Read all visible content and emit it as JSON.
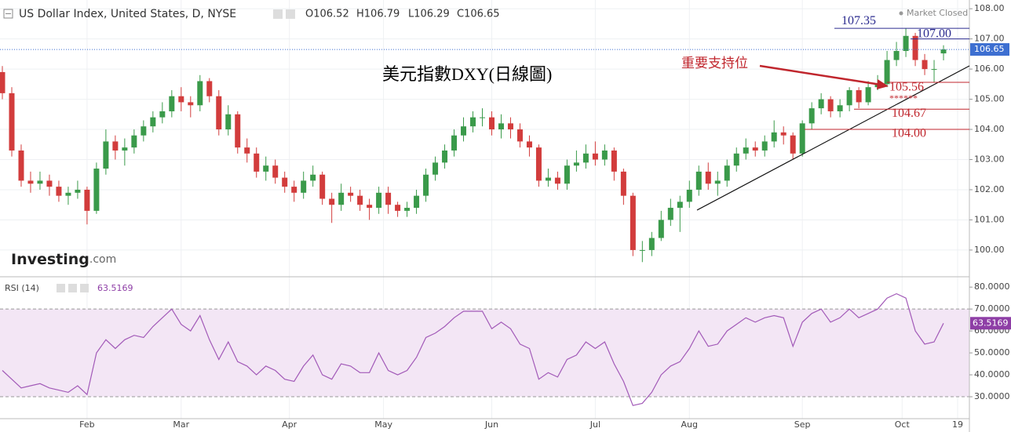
{
  "chart_data": [
    {
      "type": "candlestick",
      "title": "US Dollar Index, United States, D, NYSE",
      "ohlc_labels": [
        "O106.52",
        "H106.79",
        "L106.29",
        "C106.65"
      ],
      "status": "Market Closed",
      "annotation_title": "美元指數DXY(日線圖)",
      "support_label": "重要支持位",
      "stars": "******",
      "logo": [
        "Investing",
        ".com"
      ],
      "up_color": "#3a9a4a",
      "down_color": "#d23c3c",
      "xlim": [
        -0.25,
        102.75
      ],
      "xticks": [
        {
          "value": 9,
          "label": "Feb"
        },
        {
          "value": 19,
          "label": "Mar"
        },
        {
          "value": 30.5,
          "label": "Apr"
        },
        {
          "value": 40.5,
          "label": "May"
        },
        {
          "value": 52,
          "label": "Jun"
        },
        {
          "value": 63,
          "label": "Jul"
        },
        {
          "value": 73,
          "label": "Aug"
        },
        {
          "value": 85,
          "label": "Sep"
        },
        {
          "value": 95.6,
          "label": "Oct"
        },
        {
          "value": 101.5,
          "label": "19"
        }
      ],
      "ylim": [
        99.14,
        108.29
      ],
      "yticks": [
        {
          "value": 100,
          "label": "100.00"
        },
        {
          "value": 101,
          "label": "101.00"
        },
        {
          "value": 102,
          "label": "102.00"
        },
        {
          "value": 103,
          "label": "103.00"
        },
        {
          "value": 104,
          "label": "104.00"
        },
        {
          "value": 105,
          "label": "105.00"
        },
        {
          "value": 106,
          "label": "106.00"
        },
        {
          "value": 107,
          "label": "107.00"
        },
        {
          "value": 108,
          "label": "108.00"
        }
      ],
      "grid": true,
      "levels": [
        {
          "value": 107.35,
          "label": "107.35",
          "color": "#2b2b8f"
        },
        {
          "value": 107,
          "label": "107.00",
          "color": "#2b2b8f"
        },
        {
          "value": 105.56,
          "label": "105.56",
          "color": "#c0262d"
        },
        {
          "value": 104.67,
          "label": "104.67",
          "color": "#c0262d"
        },
        {
          "value": 104,
          "label": "104.00",
          "color": "#c0262d"
        }
      ],
      "open": [
        105.9,
        105.2,
        103.3,
        102.3,
        102.2,
        102.3,
        102.1,
        101.8,
        101.9,
        102.0,
        101.3,
        102.7,
        103.6,
        103.3,
        103.4,
        103.8,
        104.1,
        104.4,
        104.6,
        105.1,
        104.9,
        104.8,
        105.6,
        105.1,
        104.0,
        104.5,
        103.4,
        103.2,
        102.6,
        102.8,
        102.4,
        102.1,
        101.9,
        102.3,
        102.5,
        101.7,
        101.5,
        101.9,
        101.8,
        101.5,
        101.4,
        101.9,
        101.5,
        101.3,
        101.4,
        101.8,
        102.5,
        102.9,
        103.3,
        103.8,
        104.1,
        104.4,
        104.4,
        104.0,
        104.2,
        104.0,
        103.6,
        103.4,
        102.3,
        102.4,
        102.2,
        102.8,
        102.9,
        103.2,
        103.0,
        103.3,
        102.6,
        101.8,
        100.0,
        100.0,
        100.4,
        101.0,
        101.4,
        101.6,
        102.0,
        102.6,
        102.2,
        102.3,
        102.8,
        103.2,
        103.4,
        103.3,
        103.6,
        103.9,
        103.8,
        103.2,
        104.2,
        104.7,
        105.0,
        104.6,
        104.8,
        105.3,
        104.9,
        105.4,
        105.5,
        106.3,
        106.6,
        107.1,
        106.3,
        106.0,
        106.52
      ],
      "high": [
        106.1,
        105.4,
        103.5,
        102.6,
        102.6,
        102.5,
        102.3,
        102.1,
        102.3,
        102.1,
        102.9,
        104.0,
        103.8,
        103.7,
        104.0,
        104.3,
        104.6,
        104.9,
        105.3,
        105.4,
        105.1,
        105.8,
        105.7,
        105.3,
        104.8,
        104.6,
        103.7,
        103.4,
        103.1,
        103.0,
        102.6,
        102.3,
        102.6,
        102.8,
        102.6,
        101.9,
        102.2,
        102.1,
        102.0,
        101.7,
        102.1,
        102.1,
        101.6,
        101.6,
        102.0,
        102.7,
        103.1,
        103.5,
        104.0,
        104.4,
        104.6,
        104.7,
        104.6,
        104.5,
        104.4,
        104.2,
        103.8,
        103.5,
        102.7,
        102.6,
        103.0,
        103.3,
        103.5,
        103.6,
        103.5,
        103.4,
        102.7,
        101.9,
        100.3,
        100.6,
        101.3,
        101.7,
        101.8,
        102.3,
        102.8,
        102.9,
        102.6,
        103.0,
        103.4,
        103.7,
        103.6,
        103.8,
        104.3,
        104.1,
        103.9,
        104.3,
        104.9,
        105.2,
        105.1,
        105.0,
        105.4,
        105.4,
        105.6,
        105.8,
        106.6,
        106.9,
        107.35,
        107.2,
        106.5,
        106.3,
        106.79
      ],
      "low": [
        105.0,
        103.1,
        102.1,
        101.9,
        102.0,
        101.8,
        101.6,
        101.5,
        101.7,
        100.85,
        101.2,
        102.5,
        103.0,
        102.8,
        103.2,
        103.6,
        103.9,
        104.2,
        104.4,
        104.6,
        104.4,
        104.6,
        104.9,
        103.8,
        103.8,
        103.2,
        102.9,
        102.4,
        102.3,
        102.2,
        101.9,
        101.6,
        101.7,
        102.1,
        101.5,
        100.9,
        101.3,
        101.6,
        101.3,
        101.0,
        101.2,
        101.2,
        101.1,
        101.1,
        101.2,
        101.6,
        102.3,
        102.7,
        103.1,
        103.6,
        103.9,
        104.1,
        103.8,
        103.7,
        103.7,
        103.4,
        103.1,
        102.1,
        102.1,
        102.0,
        102.0,
        102.6,
        102.7,
        102.8,
        102.8,
        102.3,
        101.5,
        99.8,
        99.6,
        99.8,
        100.3,
        100.8,
        100.6,
        101.4,
        101.8,
        102.0,
        101.8,
        102.1,
        102.6,
        103.0,
        103.1,
        103.1,
        103.4,
        103.5,
        103.0,
        103.1,
        104.0,
        104.5,
        104.4,
        104.4,
        104.6,
        104.7,
        104.8,
        105.3,
        105.4,
        106.1,
        106.4,
        106.1,
        105.8,
        105.56,
        106.29
      ],
      "close": [
        105.2,
        103.3,
        102.3,
        102.2,
        102.3,
        102.1,
        101.8,
        101.9,
        102.0,
        101.3,
        102.7,
        103.6,
        103.3,
        103.4,
        103.8,
        104.1,
        104.4,
        104.6,
        105.1,
        104.9,
        104.8,
        105.6,
        105.1,
        104.0,
        104.5,
        103.4,
        103.2,
        102.6,
        102.8,
        102.4,
        102.1,
        101.9,
        102.3,
        102.5,
        101.7,
        101.5,
        101.9,
        101.8,
        101.5,
        101.4,
        101.9,
        101.5,
        101.3,
        101.4,
        101.8,
        102.5,
        102.9,
        103.3,
        103.8,
        104.1,
        104.4,
        104.4,
        104.0,
        104.2,
        104.0,
        103.6,
        103.4,
        102.3,
        102.4,
        102.2,
        102.8,
        102.9,
        103.2,
        103.0,
        103.3,
        102.6,
        101.8,
        100.0,
        100.0,
        100.4,
        101.0,
        101.4,
        101.6,
        102.0,
        102.6,
        102.2,
        102.3,
        102.8,
        103.2,
        103.4,
        103.3,
        103.6,
        103.9,
        103.8,
        103.2,
        104.2,
        104.7,
        105.0,
        104.6,
        104.8,
        105.3,
        104.9,
        105.4,
        105.5,
        106.3,
        106.6,
        107.1,
        106.3,
        106.0,
        106.0,
        106.65
      ]
    },
    {
      "type": "line",
      "title": "RSI (14)",
      "color": "#a25ab8",
      "ylim": [
        20,
        84
      ],
      "yticks": [
        {
          "value": 30,
          "label": "30.0000"
        },
        {
          "value": 40,
          "label": "40.0000"
        },
        {
          "value": 50,
          "label": "50.0000"
        },
        {
          "value": 60,
          "label": "60.0000"
        },
        {
          "value": 70,
          "label": "70.0000"
        },
        {
          "value": 80,
          "label": "80.0000"
        }
      ],
      "levels": [
        70,
        30
      ],
      "values": [
        42,
        38,
        34,
        35,
        36,
        34,
        33,
        32,
        35,
        31,
        50,
        56,
        52,
        56,
        58,
        57,
        62,
        66,
        70,
        63,
        60,
        67,
        56,
        47,
        55,
        46,
        44,
        40,
        44,
        42,
        38,
        37,
        44,
        49,
        40,
        38,
        45,
        44,
        41,
        41,
        50,
        42,
        40,
        42,
        48,
        57,
        59,
        62,
        66,
        69,
        69,
        69,
        61,
        64,
        61,
        54,
        52,
        38,
        41,
        39,
        47,
        49,
        55,
        52,
        55,
        45,
        37,
        26,
        27,
        32,
        40,
        44,
        46,
        52,
        60,
        53,
        54,
        60,
        63,
        66,
        64,
        66,
        67,
        66,
        53,
        64,
        68,
        70,
        64,
        66,
        70,
        66,
        68,
        70,
        75,
        77,
        75,
        60,
        54,
        55,
        63.5169
      ]
    }
  ]
}
